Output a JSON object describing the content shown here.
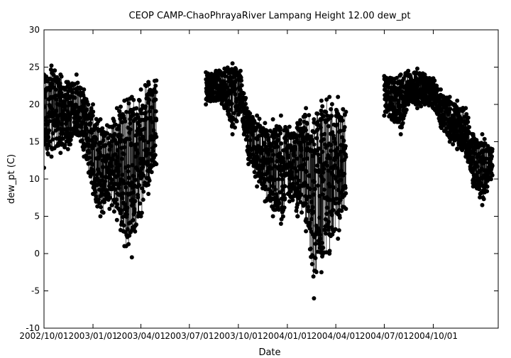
{
  "chart_data": {
    "type": "scatter",
    "title": "CEOP CAMP-ChaoPhrayaRiver Lampang Height 12.00 dew_pt",
    "xlabel": "Date",
    "ylabel": "dew_pt (C)",
    "ylim": [
      -10,
      30
    ],
    "xlim": [
      "2002-10-01",
      "2005-01-31"
    ],
    "y_ticks": [
      -10,
      -5,
      0,
      5,
      10,
      15,
      20,
      25,
      30
    ],
    "x_ticks": [
      {
        "date": "2002-10-01",
        "label": "2002/10/01"
      },
      {
        "date": "2003-01-01",
        "label": "2003/01/01"
      },
      {
        "date": "2003-04-01",
        "label": "2003/04/01"
      },
      {
        "date": "2003-07-01",
        "label": "2003/07/01"
      },
      {
        "date": "2003-10-01",
        "label": "2003/10/01"
      },
      {
        "date": "2004-01-01",
        "label": "2004/01/01"
      },
      {
        "date": "2004-04-01",
        "label": "2004/04/01"
      },
      {
        "date": "2004-07-01",
        "label": "2004/07/01"
      },
      {
        "date": "2004-10-01",
        "label": "2004/10/01"
      }
    ],
    "grid": false,
    "marker": "filled-circle",
    "line": "thin-connecting",
    "series_envelope": {
      "dates": [
        "2002-10-01",
        "2002-10-15",
        "2002-11-01",
        "2002-11-15",
        "2002-12-01",
        "2002-12-15",
        "2003-01-01",
        "2003-01-15",
        "2003-02-01",
        "2003-02-15",
        "2003-03-01",
        "2003-03-15",
        "2003-04-01",
        "2003-04-15",
        "2003-04-30",
        "2003-08-01",
        "2003-08-20",
        "2003-09-05",
        "2003-09-20",
        "2003-10-05",
        "2003-10-20",
        "2003-11-05",
        "2003-11-20",
        "2003-12-05",
        "2003-12-20",
        "2004-01-05",
        "2004-01-20",
        "2004-02-05",
        "2004-02-20",
        "2004-03-05",
        "2004-03-20",
        "2004-04-05",
        "2004-04-20",
        "2004-07-01",
        "2004-07-15",
        "2004-08-01",
        "2004-08-15",
        "2004-09-01",
        "2004-09-15",
        "2004-10-01",
        "2004-10-15",
        "2004-11-01",
        "2004-11-15",
        "2004-12-01",
        "2004-12-15",
        "2005-01-01",
        "2005-01-20"
      ],
      "upper": [
        24,
        25.2,
        24,
        23,
        24,
        22,
        20,
        18,
        17,
        19.5,
        20.5,
        21,
        22,
        23,
        23.2,
        24.3,
        24.5,
        24.8,
        25.5,
        24.5,
        19,
        18.5,
        17.5,
        18,
        18.5,
        17,
        17.5,
        19.5,
        18,
        20.5,
        21,
        21,
        19,
        23.8,
        23.5,
        24,
        24.5,
        24.8,
        24,
        23.5,
        22,
        21,
        20.5,
        19.5,
        16,
        16,
        14
      ],
      "lower": [
        11.5,
        13,
        13.5,
        14,
        16,
        13,
        8,
        5,
        6,
        4.5,
        1,
        -0.5,
        5,
        8,
        12,
        20,
        20.5,
        19.5,
        16,
        19,
        12,
        9,
        7,
        5,
        4,
        7,
        5,
        3,
        -6,
        -2.5,
        0,
        2,
        6,
        18.5,
        18,
        16,
        20,
        19.5,
        20,
        19.5,
        17,
        15,
        14,
        13,
        9,
        6.5,
        10.5
      ]
    }
  }
}
